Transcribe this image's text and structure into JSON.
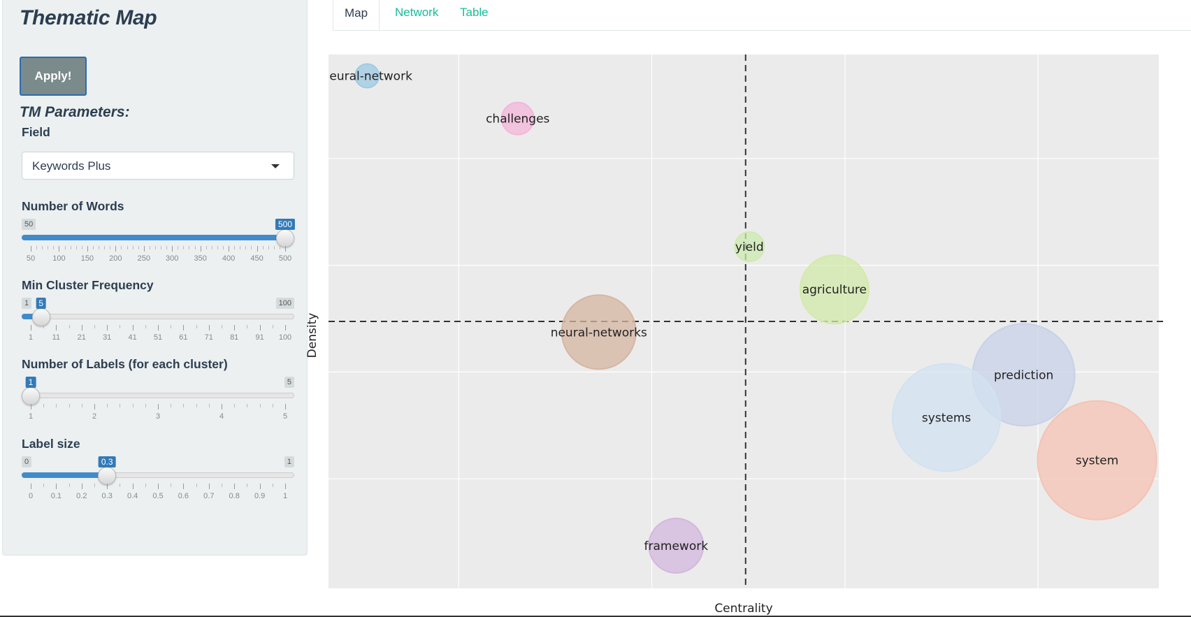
{
  "sidebar": {
    "title": "Thematic Map",
    "apply_button": "Apply!",
    "section_title": "TM Parameters:",
    "field": {
      "label": "Field",
      "value": "Keywords Plus"
    },
    "sliders": [
      {
        "label": "Number of Words",
        "min": 50,
        "max": 500,
        "value": 500,
        "value_label": "500",
        "min_label": "50",
        "max_label": "500",
        "ticks": [
          "50",
          "100",
          "150",
          "200",
          "250",
          "300",
          "350",
          "400",
          "450",
          "500"
        ],
        "minor": 4
      },
      {
        "label": "Min Cluster Frequency",
        "min": 1,
        "max": 100,
        "value": 5,
        "value_label": "5",
        "min_label": "1",
        "max_label": "100",
        "ticks": [
          "1",
          "11",
          "21",
          "31",
          "41",
          "51",
          "61",
          "71",
          "81",
          "91",
          "100"
        ],
        "minor": 1
      },
      {
        "label": "Number of Labels (for each cluster)",
        "min": 1,
        "max": 5,
        "value": 1,
        "value_label": "1",
        "min_label": "1",
        "max_label": "5",
        "ticks": [
          "1",
          "2",
          "3",
          "4",
          "5"
        ],
        "minor": 4
      },
      {
        "label": "Label size",
        "min": 0,
        "max": 1,
        "value": 0.3,
        "value_label": "0.3",
        "min_label": "0",
        "max_label": "1",
        "ticks": [
          "0",
          "0.1",
          "0.2",
          "0.3",
          "0.4",
          "0.5",
          "0.6",
          "0.7",
          "0.8",
          "0.9",
          "1"
        ],
        "minor": 1
      }
    ]
  },
  "tabs": [
    {
      "label": "Map",
      "active": true
    },
    {
      "label": "Network",
      "active": false
    },
    {
      "label": "Table",
      "active": false
    }
  ],
  "chart_data": {
    "type": "scatter",
    "xlabel": "Centrality",
    "ylabel": "Density",
    "xlim": [
      0,
      21.5
    ],
    "ylim": [
      0,
      10
    ],
    "vline": 10.8,
    "hline": 5,
    "background": "#ebebeb",
    "points": [
      {
        "label": "neural-network",
        "x": 1.0,
        "y": 9.6,
        "size": 0.2,
        "color": "#9ecae1"
      },
      {
        "label": "challenges",
        "x": 4.9,
        "y": 8.8,
        "size": 0.35,
        "color": "#f4b6d9"
      },
      {
        "label": "yield",
        "x": 10.9,
        "y": 6.4,
        "size": 0.3,
        "color": "#ccebb0"
      },
      {
        "label": "agriculture",
        "x": 13.1,
        "y": 5.6,
        "size": 1.0,
        "color": "#d3eaa9"
      },
      {
        "label": "neural-networks",
        "x": 7.0,
        "y": 4.8,
        "size": 1.1,
        "color": "#d6b6a2"
      },
      {
        "label": "prediction",
        "x": 18.0,
        "y": 4.0,
        "size": 1.6,
        "color": "#c7d2e8"
      },
      {
        "label": "systems",
        "x": 16.0,
        "y": 3.2,
        "size": 1.7,
        "color": "#d1e2f0"
      },
      {
        "label": "system",
        "x": 19.9,
        "y": 2.4,
        "size": 1.9,
        "color": "#f5c3b3"
      },
      {
        "label": "framework",
        "x": 9.0,
        "y": 0.8,
        "size": 0.75,
        "color": "#d3b7dd"
      }
    ]
  }
}
